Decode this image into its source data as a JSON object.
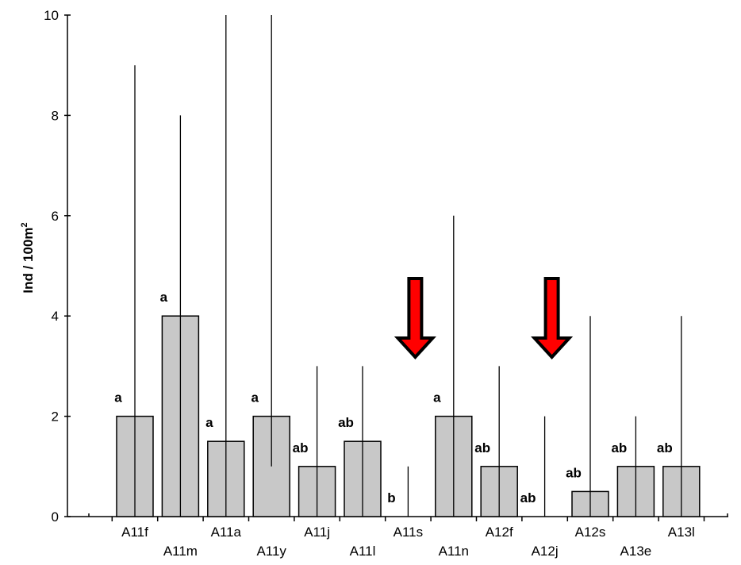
{
  "chart_data": {
    "type": "bar",
    "ylabel": "Ind / 100m",
    "ylabel_superscript": "2",
    "ylim": [
      0,
      10
    ],
    "yticks": [
      0,
      2,
      4,
      6,
      8,
      10
    ],
    "ytick_labels": [
      "0",
      "2",
      "4",
      "6",
      "8",
      "10"
    ],
    "grid": false,
    "legend": "none",
    "categories": [
      "A11f",
      "A11m",
      "A11a",
      "A11y",
      "A11j",
      "A11l",
      "A11s",
      "A11n",
      "A12f",
      "A12j",
      "A12s",
      "A13e",
      "A13l"
    ],
    "values": [
      2,
      4,
      1.5,
      2,
      1,
      1.5,
      0,
      2,
      1,
      0,
      0.5,
      1,
      1
    ],
    "whisker_low": [
      0,
      0,
      0,
      1,
      0,
      0,
      0,
      0,
      0,
      0,
      0,
      0,
      0
    ],
    "whisker_high": [
      9,
      8,
      10,
      10,
      3,
      3,
      1,
      6,
      3,
      2,
      4,
      2,
      4
    ],
    "significance": [
      "a",
      "a",
      "a",
      "a",
      "ab",
      "ab",
      "b",
      "a",
      "ab",
      "ab",
      "ab",
      "ab",
      "ab"
    ],
    "highlight_arrows": [
      "A11s",
      "A12j"
    ],
    "colors": {
      "bar_fill": "#c8c8c8",
      "bar_stroke": "#000000",
      "arrow_fill": "#ff0000",
      "arrow_stroke": "#000000"
    }
  }
}
